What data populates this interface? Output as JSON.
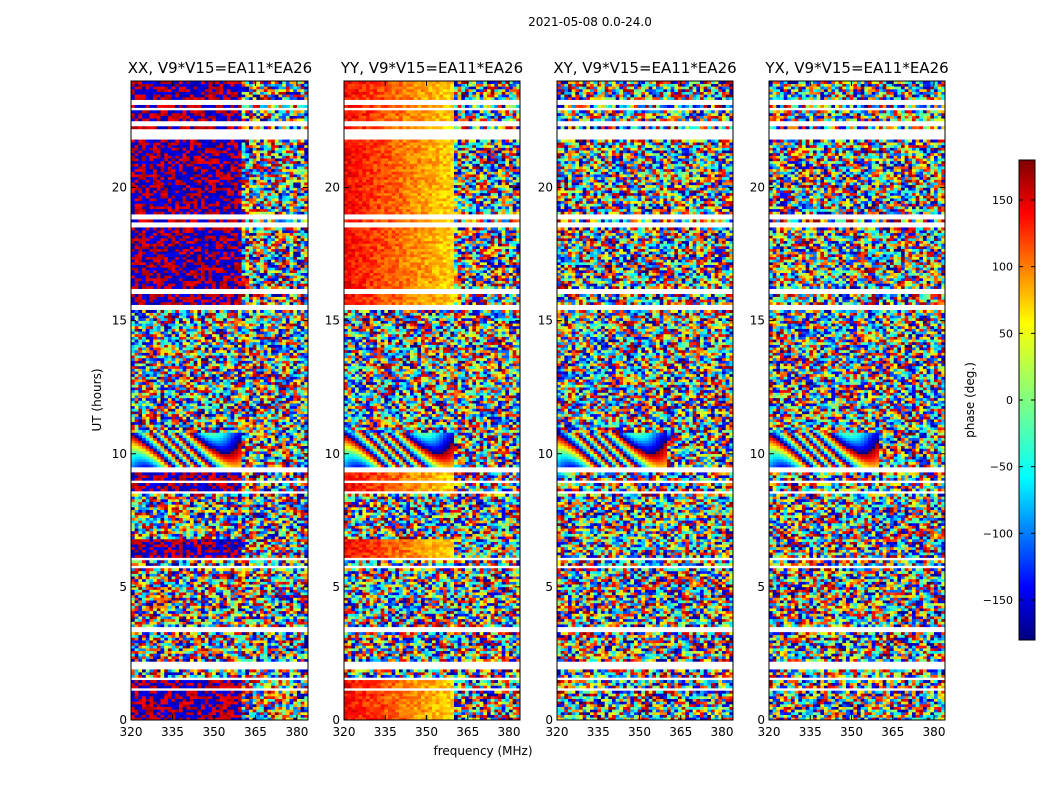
{
  "figure": {
    "suptitle": "2021-05-08 0.0-24.0"
  },
  "chart_data": {
    "type": "heatmap",
    "xlabel": "frequency (MHz)",
    "ylabel": "UT (hours)",
    "xlim": [
      320,
      384
    ],
    "ylim": [
      0,
      24
    ],
    "xticks": [
      320,
      335,
      350,
      365,
      380
    ],
    "yticks": [
      0,
      5,
      10,
      15,
      20
    ],
    "panels": [
      {
        "title": "XX, V9*V15=EA11*EA26",
        "pol": "XX"
      },
      {
        "title": "YY, V9*V15=EA11*EA26",
        "pol": "YY"
      },
      {
        "title": "XY, V9*V15=EA11*EA26",
        "pol": "XY"
      },
      {
        "title": "YX, V9*V15=EA11*EA26",
        "pol": "YX"
      }
    ],
    "colorbar": {
      "label": "phase (deg.)",
      "range": [
        -180,
        180
      ],
      "ticks": [
        150,
        100,
        50,
        0,
        -50,
        -100,
        -150
      ],
      "colormap": "jet"
    },
    "flagged_gaps_hours": [
      [
        0.55,
        0.62
      ],
      [
        1.1,
        1.16
      ],
      [
        1.5,
        1.6
      ],
      [
        1.9,
        2.2
      ],
      [
        3.3,
        3.5
      ],
      [
        5.7,
        5.8
      ],
      [
        6.0,
        6.1
      ],
      [
        8.5,
        8.6
      ],
      [
        8.9,
        9.0
      ],
      [
        9.35,
        9.45
      ],
      [
        15.45,
        15.55
      ],
      [
        16.0,
        16.2
      ],
      [
        18.5,
        18.7
      ],
      [
        18.85,
        18.95
      ],
      [
        21.8,
        22.2
      ],
      [
        22.35,
        22.45
      ],
      [
        22.9,
        23.0
      ],
      [
        23.1,
        23.3
      ]
    ]
  }
}
